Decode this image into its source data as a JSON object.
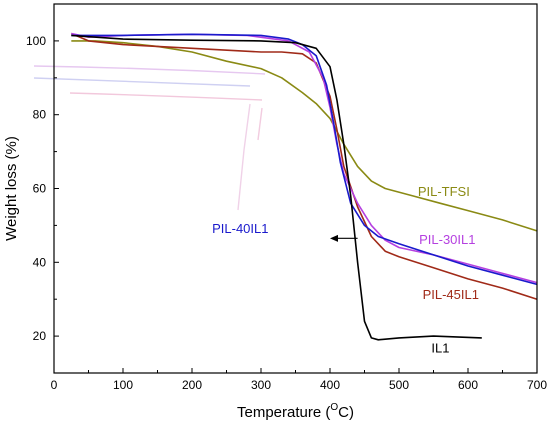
{
  "chart_data": {
    "type": "line",
    "title": "",
    "xlabel": "Temperature (",
    "xlabel_sup": "O",
    "xlabel_unit": "C)",
    "ylabel": "Weight loss (%)",
    "xlim": [
      0,
      700
    ],
    "ylim": [
      10,
      110
    ],
    "xticks": [
      0,
      100,
      200,
      300,
      400,
      500,
      600,
      700
    ],
    "yticks": [
      20,
      40,
      60,
      80,
      100
    ],
    "grid": false,
    "legend": "inline labels",
    "series": [
      {
        "name": "IL1",
        "color": "#000000",
        "points": [
          [
            25,
            101.5
          ],
          [
            100,
            100.5
          ],
          [
            200,
            100.2
          ],
          [
            300,
            100
          ],
          [
            350,
            99.5
          ],
          [
            380,
            98
          ],
          [
            400,
            93
          ],
          [
            410,
            84
          ],
          [
            420,
            72
          ],
          [
            430,
            58
          ],
          [
            440,
            40
          ],
          [
            450,
            24
          ],
          [
            460,
            19.5
          ],
          [
            470,
            19
          ],
          [
            500,
            19.5
          ],
          [
            550,
            20
          ],
          [
            620,
            19.5
          ]
        ]
      },
      {
        "name": "PIL-TFSI",
        "color": "#8a8a14",
        "points": [
          [
            25,
            100
          ],
          [
            60,
            100
          ],
          [
            100,
            99.5
          ],
          [
            150,
            98.5
          ],
          [
            200,
            97
          ],
          [
            250,
            94.5
          ],
          [
            300,
            92.5
          ],
          [
            330,
            90
          ],
          [
            360,
            86
          ],
          [
            380,
            83
          ],
          [
            400,
            79
          ],
          [
            420,
            72
          ],
          [
            440,
            66
          ],
          [
            460,
            62
          ],
          [
            480,
            60
          ],
          [
            520,
            58
          ],
          [
            560,
            56
          ],
          [
            600,
            54
          ],
          [
            650,
            51.5
          ],
          [
            700,
            48.5
          ]
        ]
      },
      {
        "name": "PIL-30IL1",
        "color": "#b540e0",
        "points": [
          [
            25,
            102
          ],
          [
            50,
            101
          ],
          [
            100,
            101.5
          ],
          [
            200,
            101.8
          ],
          [
            280,
            101.5
          ],
          [
            340,
            100
          ],
          [
            370,
            97
          ],
          [
            390,
            90
          ],
          [
            400,
            82
          ],
          [
            410,
            72
          ],
          [
            420,
            64
          ],
          [
            440,
            56
          ],
          [
            460,
            50
          ],
          [
            480,
            46
          ],
          [
            500,
            44
          ],
          [
            550,
            42
          ],
          [
            600,
            39.5
          ],
          [
            650,
            37
          ],
          [
            700,
            34.5
          ]
        ]
      },
      {
        "name": "PIL-40IL1",
        "color": "#1a1acc",
        "points": [
          [
            25,
            101.5
          ],
          [
            100,
            101.5
          ],
          [
            200,
            101.8
          ],
          [
            300,
            101.5
          ],
          [
            340,
            100.5
          ],
          [
            360,
            99
          ],
          [
            380,
            96
          ],
          [
            395,
            88
          ],
          [
            405,
            78
          ],
          [
            415,
            67
          ],
          [
            430,
            56
          ],
          [
            450,
            50
          ],
          [
            470,
            47
          ],
          [
            500,
            45
          ],
          [
            550,
            42
          ],
          [
            600,
            39
          ],
          [
            650,
            36.5
          ],
          [
            700,
            34
          ]
        ]
      },
      {
        "name": "PIL-45IL1",
        "color": "#a02a18",
        "points": [
          [
            25,
            102
          ],
          [
            50,
            100
          ],
          [
            100,
            99
          ],
          [
            200,
            98
          ],
          [
            300,
            97
          ],
          [
            330,
            97
          ],
          [
            360,
            96.5
          ],
          [
            380,
            94
          ],
          [
            400,
            85
          ],
          [
            410,
            76
          ],
          [
            420,
            66
          ],
          [
            440,
            55
          ],
          [
            460,
            47
          ],
          [
            480,
            43
          ],
          [
            500,
            41.5
          ],
          [
            550,
            38.5
          ],
          [
            600,
            35.5
          ],
          [
            650,
            33
          ],
          [
            700,
            30
          ]
        ]
      }
    ],
    "annotations": [
      {
        "text": "IL1",
        "series": "IL1",
        "x": 560,
        "y": 15.5
      },
      {
        "text": "PIL-TFSI",
        "series": "PIL-TFSI",
        "x": 565,
        "y": 58
      },
      {
        "text": "PIL-30IL1",
        "series": "PIL-30IL1",
        "x": 570,
        "y": 45
      },
      {
        "text": "PIL-40IL1",
        "series": "PIL-40IL1",
        "x": 270,
        "y": 48
      },
      {
        "text": "PIL-45IL1",
        "series": "PIL-45IL1",
        "x": 575,
        "y": 30
      }
    ],
    "arrow": {
      "from": [
        440,
        46.5
      ],
      "to": [
        400,
        46.5
      ],
      "color": "#000000"
    }
  }
}
